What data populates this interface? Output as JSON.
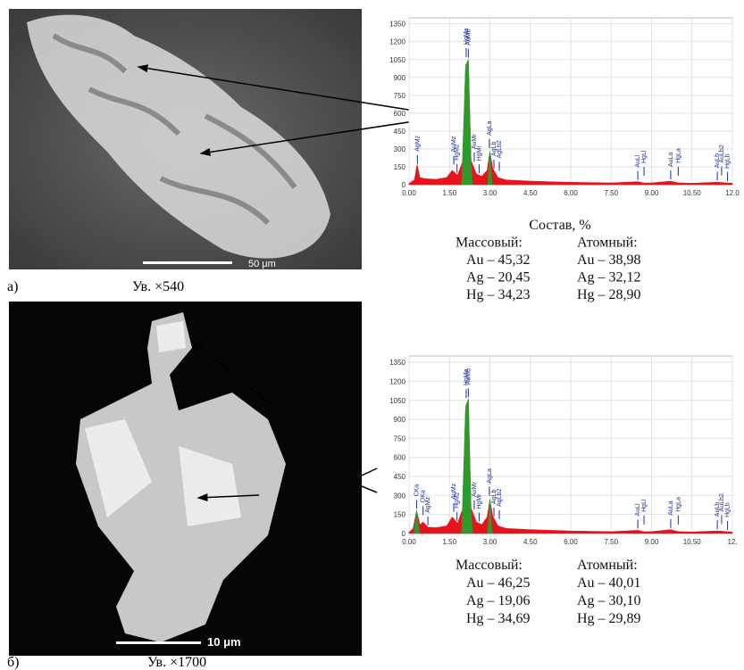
{
  "panels": [
    {
      "label": "а)",
      "magnification": "Ув. ×540",
      "scale_bar": "50 μm",
      "spectrum": {
        "type": "area",
        "color": "#e8141c",
        "highlight_color": "#2e9a2e",
        "label_color": "#1a2f9c",
        "xlim": [
          0,
          12
        ],
        "ylim": [
          0,
          1400
        ],
        "xticks": [
          {
            "value": 0,
            "label": "0.00"
          },
          {
            "value": 1.5,
            "label": "1.50"
          },
          {
            "value": 3,
            "label": "3.00"
          },
          {
            "value": 4.5,
            "label": "4.50"
          },
          {
            "value": 6,
            "label": "6.00"
          },
          {
            "value": 7.5,
            "label": "7.50"
          },
          {
            "value": 9,
            "label": "9.00"
          },
          {
            "value": 10.5,
            "label": "10.50"
          },
          {
            "value": 12,
            "label": "12.0"
          }
        ],
        "yticks": [
          0,
          150,
          300,
          450,
          600,
          750,
          900,
          1050,
          1200,
          1350
        ],
        "x": [
          0,
          0.2,
          0.3,
          0.4,
          0.6,
          1.0,
          1.4,
          1.6,
          1.8,
          2.0,
          2.1,
          2.2,
          2.3,
          2.5,
          2.7,
          2.9,
          3.0,
          3.1,
          3.3,
          3.6,
          4.5,
          6,
          7.5,
          8.5,
          8.7,
          9.0,
          9.7,
          10.0,
          10.5,
          11.4,
          11.6,
          11.8,
          12
        ],
        "counts": [
          10,
          40,
          170,
          60,
          50,
          45,
          60,
          120,
          80,
          200,
          1000,
          1050,
          200,
          90,
          70,
          120,
          280,
          140,
          60,
          40,
          30,
          20,
          15,
          25,
          15,
          15,
          30,
          15,
          12,
          20,
          18,
          15,
          12
        ],
        "highlights": [
          {
            "x": [
              1.95,
              2.1,
              2.2,
              2.3,
              2.35
            ],
            "counts": [
              0,
              1000,
              1050,
              200,
              0
            ]
          },
          {
            "x": [
              2.92,
              3.0,
              3.08
            ],
            "counts": [
              0,
              280,
              0
            ]
          }
        ],
        "peak_labels": [
          {
            "text": "AgMz",
            "energy": 0.31
          },
          {
            "text": "AuMz",
            "energy": 1.66
          },
          {
            "text": "HgMz",
            "energy": 1.78
          },
          {
            "text": "HgMa",
            "energy": 2.12
          },
          {
            "text": "AuMb",
            "energy": 2.2
          },
          {
            "text": "AuMr",
            "energy": 2.42
          },
          {
            "text": "HgMr",
            "energy": 2.6
          },
          {
            "text": "AgLa",
            "energy": 2.98
          },
          {
            "text": "AgLb",
            "energy": 3.15
          },
          {
            "text": "AgLb2",
            "energy": 3.35
          },
          {
            "text": "AuLl",
            "energy": 8.49
          },
          {
            "text": "HgLl",
            "energy": 8.72
          },
          {
            "text": "AuLa",
            "energy": 9.71
          },
          {
            "text": "HgLa",
            "energy": 9.99
          },
          {
            "text": "AuLb",
            "energy": 11.44
          },
          {
            "text": "AuLb2",
            "energy": 11.6
          },
          {
            "text": "HgLb",
            "energy": 11.82
          }
        ]
      },
      "composition": {
        "title": "Состав, %",
        "mass_header": "Массовый:",
        "atomic_header": "Атомный:",
        "mass": [
          "Au – 45,32",
          "Ag – 20,45",
          "Hg – 34,23"
        ],
        "atomic": [
          "Au – 38,98",
          "Ag – 32,12",
          "Hg – 28,90"
        ]
      }
    },
    {
      "label": "б)",
      "magnification": "Ув. ×1700",
      "scale_bar": "10 μm",
      "spectrum": {
        "type": "area",
        "color": "#e8141c",
        "highlight_color": "#2e9a2e",
        "label_color": "#1a2f9c",
        "xlim": [
          0,
          12
        ],
        "ylim": [
          0,
          1400
        ],
        "xticks": [
          {
            "value": 0,
            "label": "0.00"
          },
          {
            "value": 1.5,
            "label": "1.50"
          },
          {
            "value": 3,
            "label": "3.00"
          },
          {
            "value": 4.5,
            "label": "4.50"
          },
          {
            "value": 6,
            "label": "6.00"
          },
          {
            "value": 7.5,
            "label": "7.50"
          },
          {
            "value": 9,
            "label": "9.00"
          },
          {
            "value": 10.5,
            "label": "10.50"
          },
          {
            "value": 12,
            "label": "12."
          }
        ],
        "yticks": [
          0,
          150,
          300,
          450,
          600,
          750,
          900,
          1050,
          1200,
          1350
        ],
        "x": [
          0,
          0.15,
          0.28,
          0.4,
          0.52,
          0.7,
          1.0,
          1.4,
          1.6,
          1.8,
          2.0,
          2.1,
          2.2,
          2.3,
          2.5,
          2.7,
          2.9,
          3.0,
          3.1,
          3.3,
          3.6,
          4.5,
          6,
          7.5,
          8.5,
          8.7,
          9.0,
          9.7,
          10.0,
          10.5,
          11.4,
          11.6,
          11.8,
          12
        ],
        "counts": [
          10,
          40,
          180,
          70,
          90,
          50,
          45,
          60,
          130,
          80,
          200,
          1000,
          1060,
          200,
          90,
          70,
          130,
          270,
          140,
          60,
          40,
          30,
          20,
          15,
          25,
          15,
          15,
          30,
          15,
          12,
          20,
          18,
          15,
          12
        ],
        "highlights": [
          {
            "x": [
              0.18,
              0.28,
              0.38
            ],
            "counts": [
              0,
              180,
              0
            ]
          },
          {
            "x": [
              1.95,
              2.1,
              2.2,
              2.3,
              2.35
            ],
            "counts": [
              0,
              1000,
              1060,
              200,
              0
            ]
          },
          {
            "x": [
              2.92,
              3.0,
              3.08
            ],
            "counts": [
              0,
              270,
              0
            ]
          }
        ],
        "peak_labels": [
          {
            "text": "CKa",
            "energy": 0.28
          },
          {
            "text": "OKa",
            "energy": 0.52
          },
          {
            "text": "AgMz",
            "energy": 0.7
          },
          {
            "text": "AuMz",
            "energy": 1.66
          },
          {
            "text": "HgMz",
            "energy": 1.78
          },
          {
            "text": "HgMa",
            "energy": 2.12
          },
          {
            "text": "AuMb",
            "energy": 2.2
          },
          {
            "text": "AuMr",
            "energy": 2.42
          },
          {
            "text": "HgMr",
            "energy": 2.6
          },
          {
            "text": "AgLa",
            "energy": 2.98
          },
          {
            "text": "AgLb",
            "energy": 3.15
          },
          {
            "text": "AgLb2",
            "energy": 3.35
          },
          {
            "text": "AuLl",
            "energy": 8.49
          },
          {
            "text": "HgLl",
            "energy": 8.72
          },
          {
            "text": "AuLa",
            "energy": 9.71
          },
          {
            "text": "HgLa",
            "energy": 9.99
          },
          {
            "text": "AuLb",
            "energy": 11.44
          },
          {
            "text": "AuLb2",
            "energy": 11.6
          },
          {
            "text": "HgLb",
            "energy": 11.82
          }
        ]
      },
      "composition": {
        "mass_header": "Массовый:",
        "atomic_header": "Атомный:",
        "mass": [
          "Au – 46,25",
          "Ag – 19,06",
          "Hg – 34,69"
        ],
        "atomic": [
          "Au – 40,01",
          "Ag – 30,10",
          "Hg – 29,89"
        ]
      }
    }
  ]
}
